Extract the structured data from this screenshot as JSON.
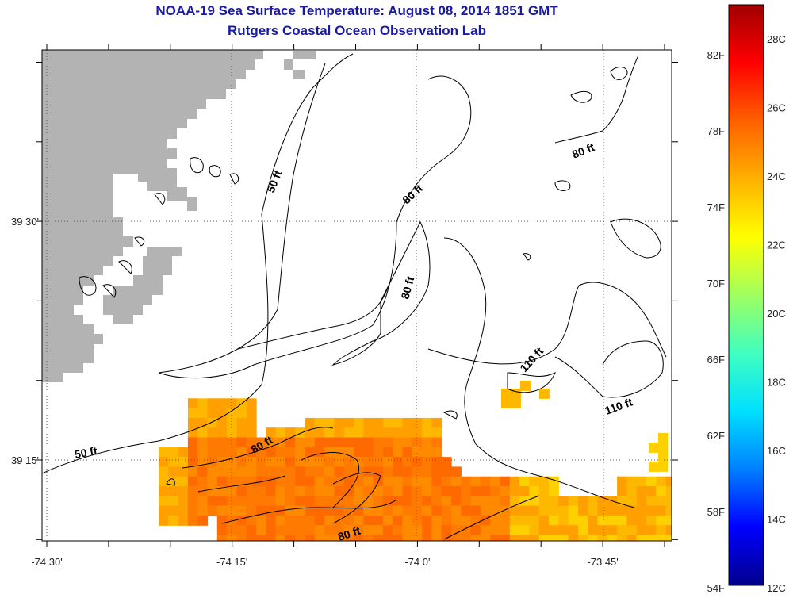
{
  "header": {
    "title": "NOAA-19 Sea Surface Temperature:  August 08, 2014 1851 GMT",
    "subtitle": "Rutgers Coastal Ocean Observation Lab"
  },
  "axes": {
    "x_ticks": [
      {
        "lon": -74.5,
        "label": "-74 30'"
      },
      {
        "lon": -74.25,
        "label": "-74 15'"
      },
      {
        "lon": -74.0,
        "label": "-74 0'"
      },
      {
        "lon": -73.75,
        "label": "-73 45'"
      }
    ],
    "y_ticks": [
      {
        "lat": 39.5,
        "label": "39 30'"
      },
      {
        "lat": 39.25,
        "label": "39 15'"
      }
    ]
  },
  "contours": [
    {
      "label": "50 ft",
      "depth": 50
    },
    {
      "label": "50 ft",
      "depth": 50
    },
    {
      "label": "80 ft",
      "depth": 80
    },
    {
      "label": "80 ft",
      "depth": 80
    },
    {
      "label": "80 ft",
      "depth": 80
    },
    {
      "label": "80 ft",
      "depth": 80
    },
    {
      "label": "80 ft",
      "depth": 80
    },
    {
      "label": "110 ft",
      "depth": 110
    },
    {
      "label": "110 ft",
      "depth": 110
    }
  ],
  "colorbar": {
    "min_c": 12,
    "max_c": 29,
    "fahrenheit_labels": [
      "82F",
      "78F",
      "74F",
      "70F",
      "66F",
      "62F",
      "58F",
      "54F"
    ],
    "celsius_labels": [
      "28C",
      "26C",
      "24C",
      "22C",
      "20C",
      "18C",
      "16C",
      "14C",
      "12C"
    ],
    "stops": [
      "#00008b",
      "#0000ff",
      "#0080ff",
      "#00e0ff",
      "#40ffc0",
      "#a0ff60",
      "#ffff00",
      "#ffb000",
      "#ff6000",
      "#ff0000",
      "#a00000"
    ]
  },
  "colors": {
    "land": "#b3b3b3",
    "title": "#1a1aa0",
    "sst_patch": [
      "#ff8a00",
      "#ff7a00",
      "#ff6a00",
      "#ffa000",
      "#ffb800",
      "#ffd000"
    ]
  }
}
